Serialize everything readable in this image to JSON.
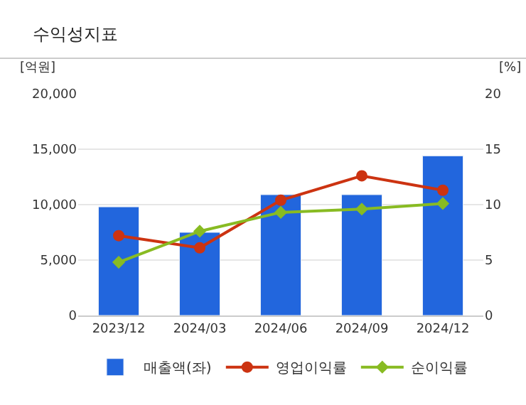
{
  "chart_data": {
    "type": "bar",
    "title": "수익성지표",
    "ylabel": "[억원]",
    "y2label": "[%]",
    "categories": [
      "2023/12",
      "2024/03",
      "2024/06",
      "2024/09",
      "2024/12"
    ],
    "series": [
      {
        "name": "매출액(좌)",
        "color": "#2266dd",
        "values": [
          9800,
          7500,
          10900,
          10900,
          14400
        ]
      },
      {
        "name": "영업이익률",
        "type": "line",
        "axis": "y2",
        "marker": "circle",
        "color": "#cc3311",
        "values": [
          7.2,
          6.1,
          10.4,
          12.6,
          11.3
        ]
      },
      {
        "name": "순이익률",
        "type": "line",
        "axis": "y2",
        "marker": "diamond",
        "color": "#88bb22",
        "values": [
          4.8,
          7.6,
          9.3,
          9.6,
          10.1
        ]
      }
    ],
    "ylim": [
      0,
      20000
    ],
    "yticks": [
      {
        "value": 0,
        "label": "0"
      },
      {
        "value": 5000,
        "label": "5,000"
      },
      {
        "value": 10000,
        "label": "10,000"
      },
      {
        "value": 15000,
        "label": "15,000"
      },
      {
        "value": 20000,
        "label": "20,000"
      }
    ],
    "y2lim": [
      0,
      20
    ],
    "y2ticks": [
      0,
      5,
      10,
      15,
      20
    ],
    "grid": "y",
    "legend": "bottom"
  }
}
